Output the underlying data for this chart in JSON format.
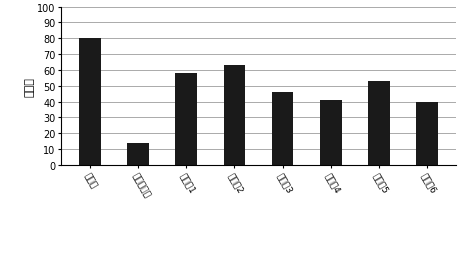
{
  "categories": [
    "试验组",
    "载体对照组",
    "对照组1",
    "对照组2",
    "对照组3",
    "对照组4",
    "对照组5",
    "对照组6"
  ],
  "values": [
    80,
    14,
    58,
    63,
    46,
    41,
    53,
    40
  ],
  "bar_color": "#1a1a1a",
  "ylabel": "百分比",
  "ylim": [
    0,
    100
  ],
  "yticks": [
    0,
    10,
    20,
    30,
    40,
    50,
    60,
    70,
    80,
    90,
    100
  ],
  "background_color": "#ffffff",
  "grid_color": "#888888",
  "bar_width": 0.45,
  "figsize": [
    4.7,
    2.55
  ],
  "dpi": 100
}
